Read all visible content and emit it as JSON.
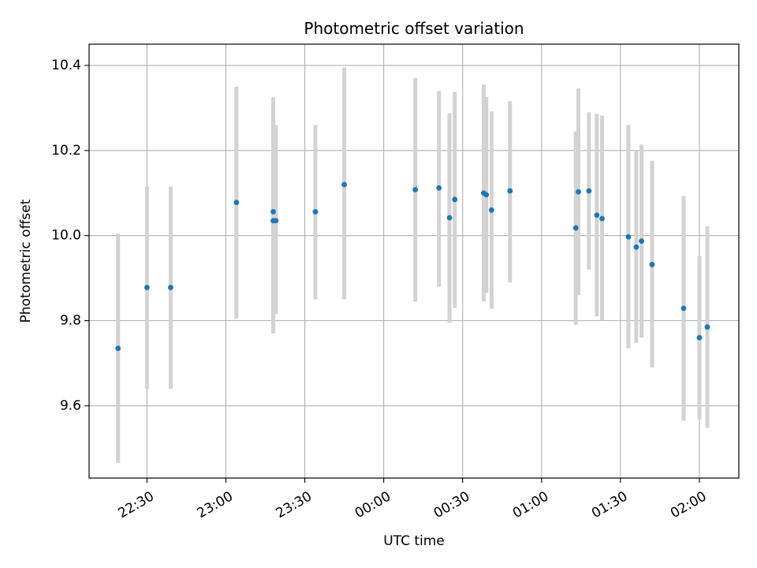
{
  "chart_data": {
    "type": "scatter",
    "title": "Photometric offset variation",
    "xlabel": "UTC time",
    "ylabel": "Photometric offset",
    "x_unit": "minutes after 22:00 UTC",
    "x_ticks": [
      {
        "value": 30,
        "label": "22:30"
      },
      {
        "value": 60,
        "label": "23:00"
      },
      {
        "value": 90,
        "label": "23:30"
      },
      {
        "value": 120,
        "label": "00:00"
      },
      {
        "value": 150,
        "label": "00:30"
      },
      {
        "value": 180,
        "label": "01:00"
      },
      {
        "value": 210,
        "label": "01:30"
      },
      {
        "value": 240,
        "label": "02:00"
      }
    ],
    "y_ticks": [
      {
        "value": 9.6,
        "label": "9.6"
      },
      {
        "value": 9.8,
        "label": "9.8"
      },
      {
        "value": 10.0,
        "label": "10.0"
      },
      {
        "value": 10.2,
        "label": "10.2"
      },
      {
        "value": 10.4,
        "label": "10.4"
      }
    ],
    "xlim": [
      8,
      255
    ],
    "ylim": [
      9.43,
      10.45
    ],
    "grid": true,
    "colors": {
      "point": "#1f77b4",
      "errorbar": "#d3d3d3",
      "grid": "#b0b0b0"
    },
    "points": [
      {
        "time": "22:19",
        "y": 9.735,
        "low": 9.465,
        "high": 10.005
      },
      {
        "time": "22:30",
        "y": 9.878,
        "low": 9.64,
        "high": 10.115
      },
      {
        "time": "22:39",
        "y": 9.878,
        "low": 9.64,
        "high": 10.115
      },
      {
        "time": "23:04",
        "y": 10.078,
        "low": 9.805,
        "high": 10.35
      },
      {
        "time": "23:18",
        "y": 10.035,
        "low": 9.77,
        "high": 10.3
      },
      {
        "time": "23:18",
        "y": 10.056,
        "low": 9.785,
        "high": 10.325
      },
      {
        "time": "23:19",
        "y": 10.035,
        "low": 9.815,
        "high": 10.26
      },
      {
        "time": "23:34",
        "y": 10.056,
        "low": 9.85,
        "high": 10.26
      },
      {
        "time": "23:45",
        "y": 10.12,
        "low": 9.85,
        "high": 10.395
      },
      {
        "time": "00:12",
        "y": 10.108,
        "low": 9.845,
        "high": 10.37
      },
      {
        "time": "00:21",
        "y": 10.112,
        "low": 9.88,
        "high": 10.34
      },
      {
        "time": "00:25",
        "y": 10.042,
        "low": 9.795,
        "high": 10.288
      },
      {
        "time": "00:27",
        "y": 10.085,
        "low": 9.83,
        "high": 10.338
      },
      {
        "time": "00:38",
        "y": 10.1,
        "low": 9.845,
        "high": 10.355
      },
      {
        "time": "00:39",
        "y": 10.096,
        "low": 9.865,
        "high": 10.326
      },
      {
        "time": "00:41",
        "y": 10.06,
        "low": 9.828,
        "high": 10.292
      },
      {
        "time": "00:48",
        "y": 10.105,
        "low": 9.89,
        "high": 10.316
      },
      {
        "time": "01:13",
        "y": 10.018,
        "low": 9.79,
        "high": 10.245
      },
      {
        "time": "01:14",
        "y": 10.103,
        "low": 9.86,
        "high": 10.346
      },
      {
        "time": "01:18",
        "y": 10.105,
        "low": 9.92,
        "high": 10.29
      },
      {
        "time": "01:21",
        "y": 10.048,
        "low": 9.81,
        "high": 10.286
      },
      {
        "time": "01:23",
        "y": 10.04,
        "low": 9.8,
        "high": 10.282
      },
      {
        "time": "01:33",
        "y": 9.997,
        "low": 9.735,
        "high": 10.26
      },
      {
        "time": "01:36",
        "y": 9.973,
        "low": 9.748,
        "high": 10.198
      },
      {
        "time": "01:38",
        "y": 9.987,
        "low": 9.76,
        "high": 10.214
      },
      {
        "time": "01:42",
        "y": 9.932,
        "low": 9.69,
        "high": 10.176
      },
      {
        "time": "01:54",
        "y": 9.829,
        "low": 9.565,
        "high": 10.093
      },
      {
        "time": "02:00",
        "y": 9.76,
        "low": 9.568,
        "high": 9.952
      },
      {
        "time": "02:03",
        "y": 9.785,
        "low": 9.548,
        "high": 10.022
      }
    ]
  }
}
